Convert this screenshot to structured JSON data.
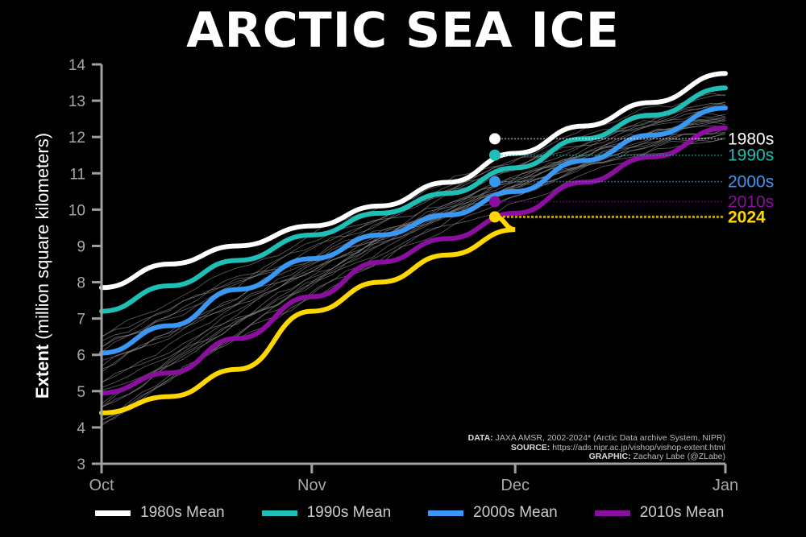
{
  "title": "ARCTIC SEA ICE",
  "y_axis": {
    "label_bold": "Extent",
    "label_unit": "(million square kilometers)"
  },
  "credits": {
    "data_label": "DATA:",
    "data_text": "JAXA AMSR, 2002-2024* (Arctic Data archive System, NIPR)",
    "source_label": "SOURCE:",
    "source_text": "https://ads.nipr.ac.jp/vishop/vishop-extent.html",
    "graphic_label": "GRAPHIC:",
    "graphic_text": "Zachary Labe (@ZLabe)"
  },
  "legend": [
    {
      "label": "1980s Mean",
      "color": "#ffffff"
    },
    {
      "label": "1990s Mean",
      "color": "#1fbfb8"
    },
    {
      "label": "2000s Mean",
      "color": "#3a98f5"
    },
    {
      "label": "2010s Mean",
      "color": "#8b0f9e"
    }
  ],
  "end_labels": [
    {
      "label": "1980s",
      "color": "#ffffff",
      "value": 11.95
    },
    {
      "label": "1990s",
      "color": "#1fbfb8",
      "value": 11.5
    },
    {
      "label": "2000s",
      "color": "#3a98f5",
      "value": 10.77
    },
    {
      "label": "2010s",
      "color": "#8b0f9e",
      "value": 10.22
    },
    {
      "label": "2024",
      "color": "#ffd700",
      "value": 9.8
    }
  ],
  "chart_data": {
    "type": "line",
    "title": "ARCTIC SEA ICE",
    "xlabel": "",
    "ylabel": "Extent (million square kilometers)",
    "x_ticks": [
      "Oct",
      "Nov",
      "Dec",
      "Jan"
    ],
    "y_ticks": [
      3,
      4,
      5,
      6,
      7,
      8,
      9,
      10,
      11,
      12,
      13,
      14
    ],
    "ylim": [
      3,
      14
    ],
    "xlim_days": [
      0,
      92
    ],
    "grid": false,
    "legend_position": "bottom",
    "x_days": [
      0,
      10,
      20,
      31,
      41,
      51,
      61,
      71,
      81,
      92
    ],
    "series": [
      {
        "name": "1980s Mean",
        "color": "#ffffff",
        "values": [
          7.85,
          8.5,
          9.0,
          9.55,
          10.1,
          10.75,
          11.55,
          12.3,
          12.95,
          13.75
        ]
      },
      {
        "name": "1990s Mean",
        "color": "#1fbfb8",
        "values": [
          7.2,
          7.9,
          8.6,
          9.3,
          9.9,
          10.45,
          11.15,
          11.95,
          12.6,
          13.35
        ]
      },
      {
        "name": "2000s Mean",
        "color": "#3a98f5",
        "values": [
          6.05,
          6.8,
          7.8,
          8.65,
          9.3,
          9.85,
          10.5,
          11.35,
          12.05,
          12.8
        ]
      },
      {
        "name": "2010s Mean",
        "color": "#8b0f9e",
        "values": [
          4.95,
          5.5,
          6.45,
          7.6,
          8.55,
          9.2,
          9.9,
          10.75,
          11.45,
          12.25
        ]
      },
      {
        "name": "2024",
        "color": "#ffd700",
        "values": [
          4.4,
          4.85,
          5.6,
          7.2,
          8.0,
          8.75,
          9.45,
          null,
          null,
          null
        ],
        "end_day": 58,
        "end_value": 9.8
      }
    ],
    "annotations": [
      "1980s",
      "1990s",
      "2000s",
      "2010s",
      "2024",
      "DATA: JAXA AMSR, 2002-2024* (Arctic Data archive System, NIPR)",
      "SOURCE: https://ads.nipr.ac.jp/vishop/vishop-extent.html",
      "GRAPHIC: Zachary Labe (@ZLabe)"
    ]
  }
}
